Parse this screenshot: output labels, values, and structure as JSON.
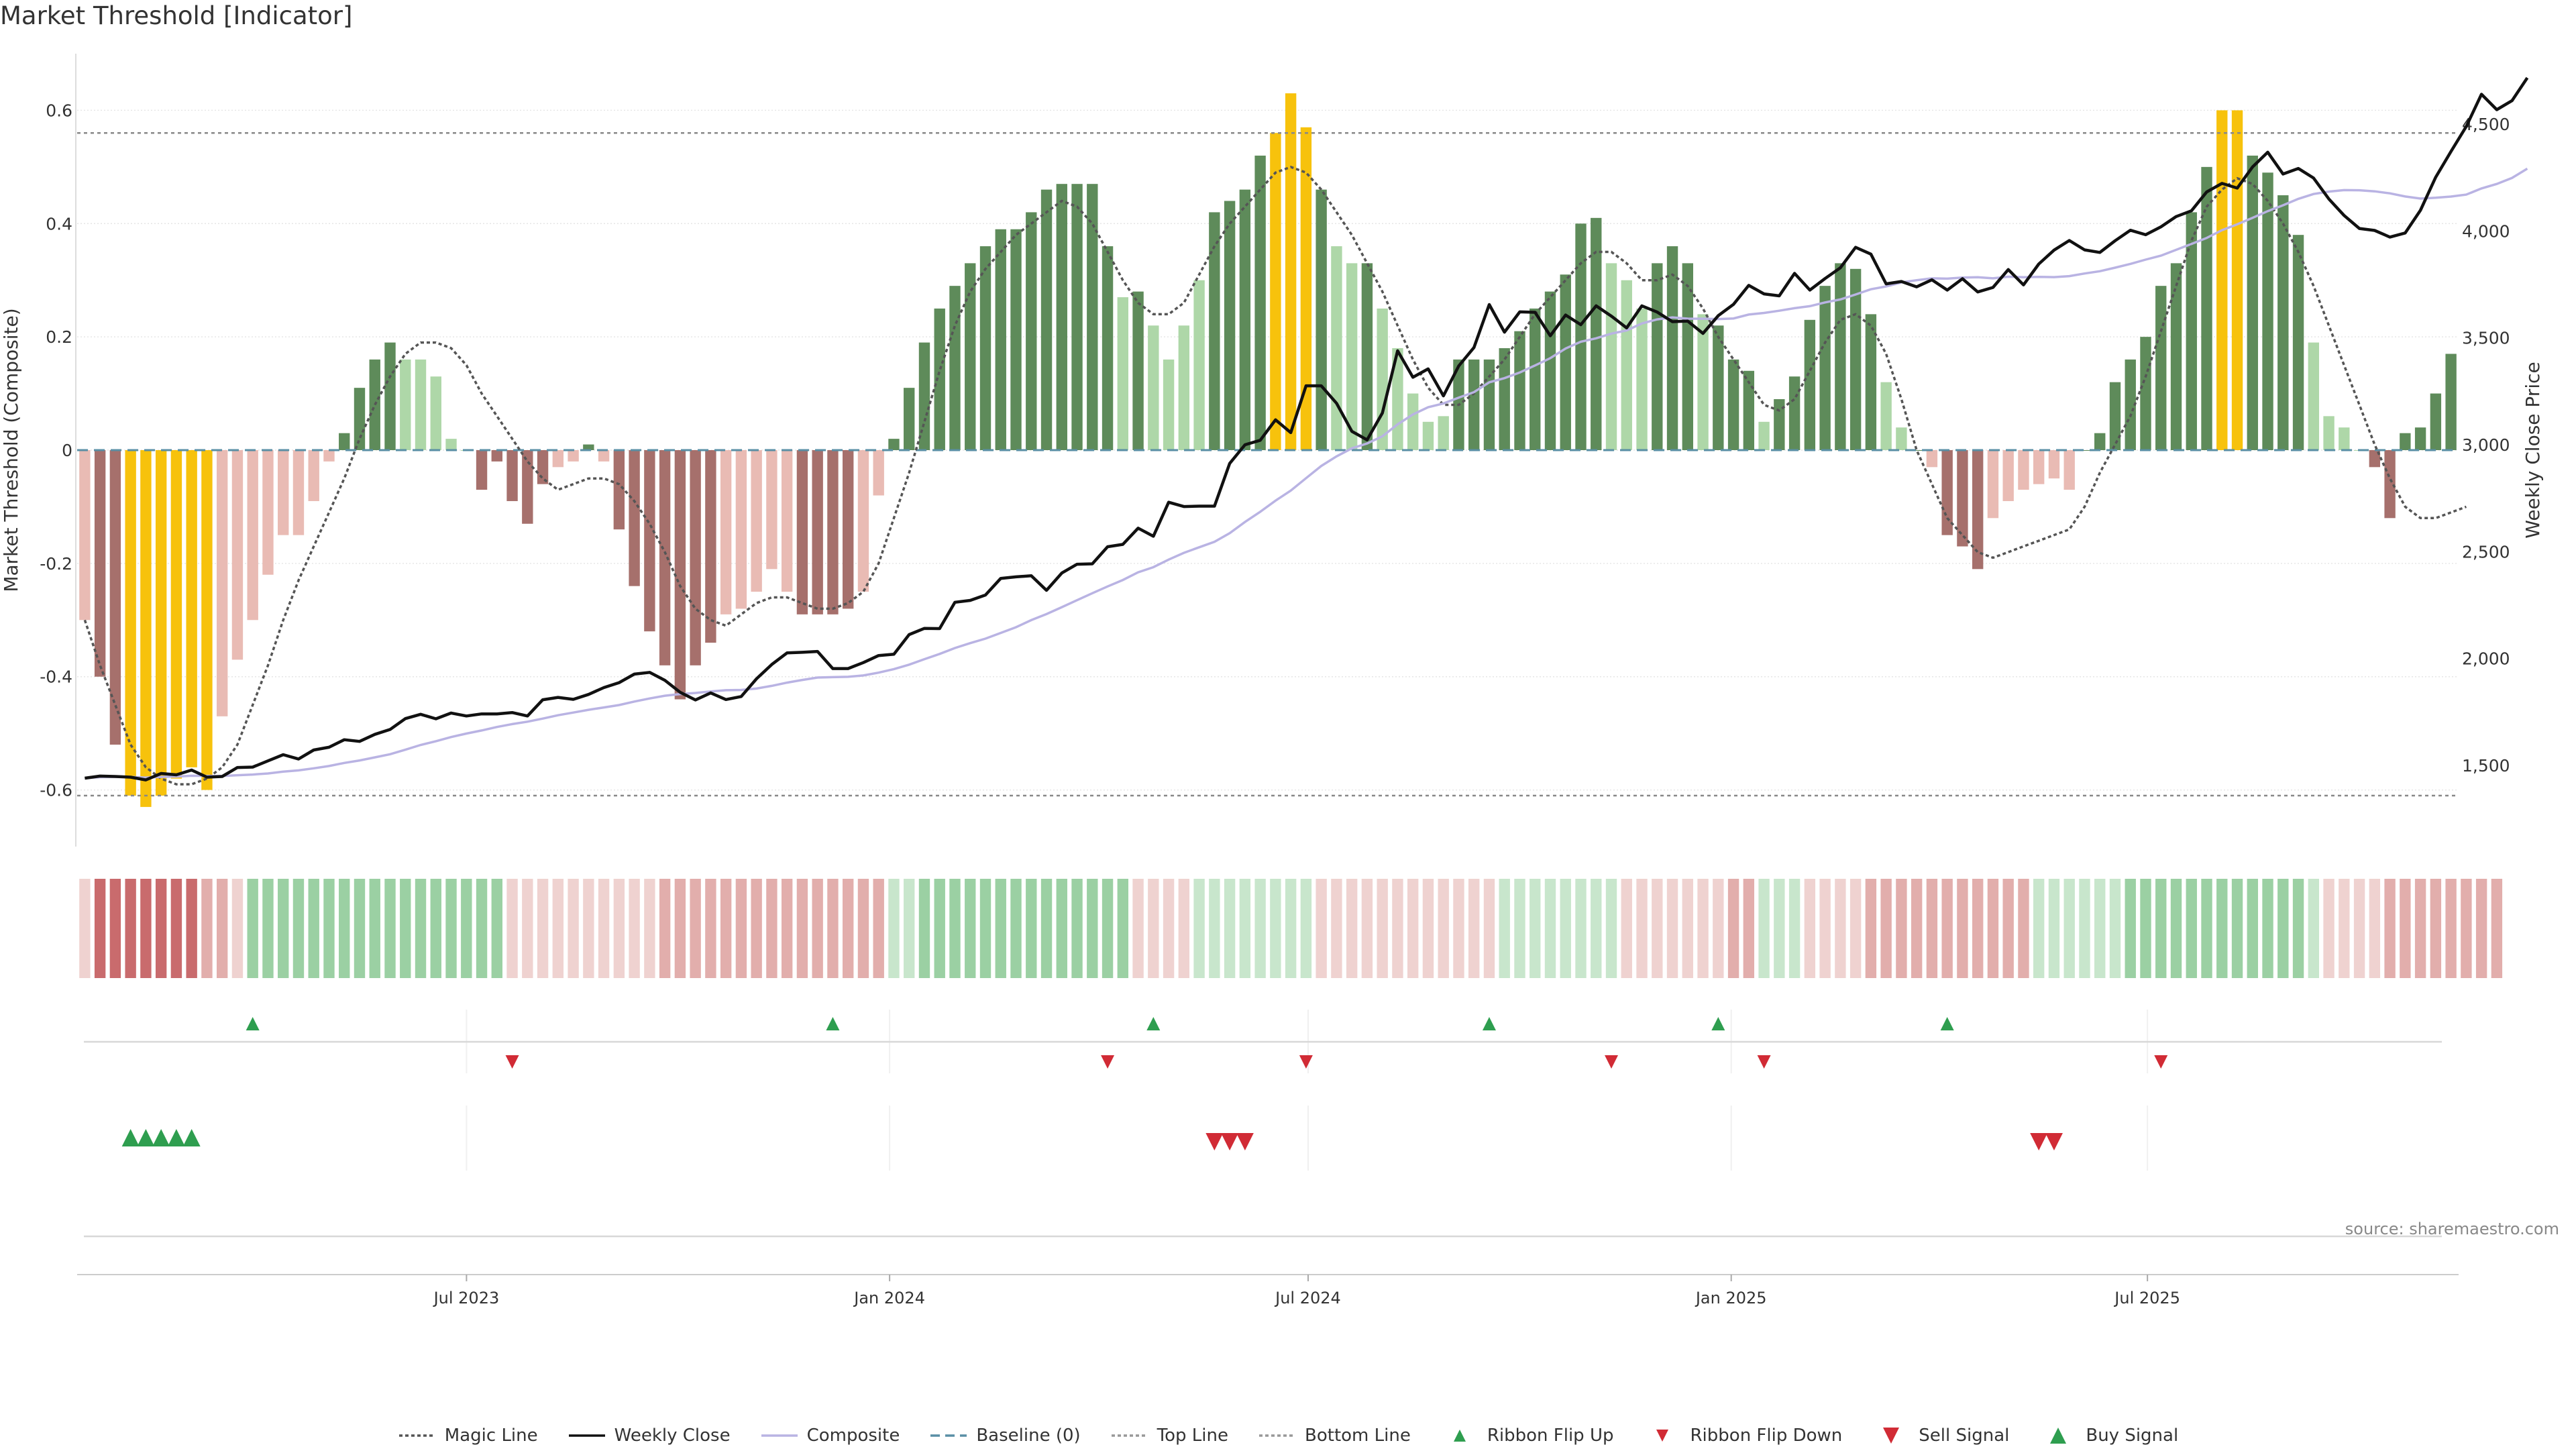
{
  "chart_data": {
    "type": "bar",
    "title": "Market Threshold [Indicator]",
    "ylabel": "Market Threshold (Composite)",
    "ylabel_right": "Weekly Close Price",
    "ylim": [
      -0.7,
      0.7
    ],
    "ylim_right": [
      1120,
      4830
    ],
    "yticks": [
      -0.6,
      -0.4,
      -0.2,
      0,
      0.2,
      0.4,
      0.6
    ],
    "yticks_right": [
      1500,
      2000,
      2500,
      3000,
      3500,
      4000,
      4500
    ],
    "date_start": "2023-01-16",
    "date_end": "2025-11-10",
    "xticks": [
      {
        "date": "2023-07-01",
        "label": "Jul 2023"
      },
      {
        "date": "2024-01-01",
        "label": "Jan 2024"
      },
      {
        "date": "2024-07-01",
        "label": "Jul 2024"
      },
      {
        "date": "2025-01-01",
        "label": "Jan 2025"
      },
      {
        "date": "2025-07-01",
        "label": "Jul 2025"
      }
    ],
    "top_line": 0.56,
    "bottom_line": -0.61,
    "baseline": 0,
    "composite": [
      -0.3,
      -0.4,
      -0.52,
      -0.61,
      -0.63,
      -0.61,
      -0.58,
      -0.56,
      -0.6,
      -0.47,
      -0.37,
      -0.3,
      -0.22,
      -0.15,
      -0.15,
      -0.09,
      -0.02,
      0.03,
      0.11,
      0.16,
      0.19,
      0.16,
      0.16,
      0.13,
      0.02,
      0,
      -0.07,
      -0.02,
      -0.09,
      -0.13,
      -0.06,
      -0.03,
      -0.02,
      0.01,
      -0.02,
      -0.14,
      -0.24,
      -0.32,
      -0.38,
      -0.44,
      -0.38,
      -0.34,
      -0.29,
      -0.28,
      -0.25,
      -0.21,
      -0.25,
      -0.29,
      -0.29,
      -0.29,
      -0.28,
      -0.25,
      -0.08,
      0.02,
      0.11,
      0.19,
      0.25,
      0.29,
      0.33,
      0.36,
      0.39,
      0.39,
      0.42,
      0.46,
      0.47,
      0.47,
      0.47,
      0.36,
      0.27,
      0.28,
      0.22,
      0.16,
      0.22,
      0.3,
      0.42,
      0.44,
      0.46,
      0.52,
      0.56,
      0.63,
      0.57,
      0.46,
      0.36,
      0.33,
      0.33,
      0.25,
      0.18,
      0.1,
      0.05,
      0.06,
      0.16,
      0.16,
      0.16,
      0.18,
      0.21,
      0.25,
      0.28,
      0.31,
      0.4,
      0.41,
      0.33,
      0.3,
      0.25,
      0.33,
      0.36,
      0.33,
      0.24,
      0.22,
      0.16,
      0.14,
      0.05,
      0.09,
      0.13,
      0.23,
      0.29,
      0.33,
      0.32,
      0.24,
      0.12,
      0.04,
      0,
      -0.03,
      -0.15,
      -0.17,
      -0.21,
      -0.12,
      -0.09,
      -0.07,
      -0.06,
      -0.05,
      -0.07,
      0,
      0.03,
      0.12,
      0.16,
      0.2,
      0.29,
      0.33,
      0.42,
      0.5,
      0.6,
      0.6,
      0.52,
      0.49,
      0.45,
      0.38,
      0.19,
      0.06,
      0.04,
      0,
      -0.03,
      -0.12,
      0.03,
      0.04,
      0.1,
      0.17
    ],
    "weekly_close": [
      1440,
      1450,
      1448,
      1445,
      1432,
      1462,
      1456,
      1478,
      1445,
      1448,
      1490,
      1492,
      1521,
      1550,
      1530,
      1572,
      1585,
      1620,
      1612,
      1645,
      1668,
      1719,
      1739,
      1718,
      1745,
      1731,
      1741,
      1741,
      1747,
      1731,
      1807,
      1818,
      1809,
      1832,
      1864,
      1887,
      1927,
      1935,
      1898,
      1842,
      1806,
      1839,
      1808,
      1822,
      1905,
      1972,
      2026,
      2029,
      2033,
      1953,
      1953,
      1981,
      2014,
      2020,
      2112,
      2141,
      2140,
      2263,
      2272,
      2297,
      2375,
      2382,
      2387,
      2319,
      2400,
      2441,
      2443,
      2523,
      2534,
      2610,
      2572,
      2731,
      2711,
      2713,
      2713,
      2913,
      3000,
      3021,
      3117,
      3057,
      3276,
      3276,
      3194,
      3063,
      3023,
      3149,
      3440,
      3316,
      3355,
      3229,
      3369,
      3455,
      3656,
      3527,
      3622,
      3620,
      3510,
      3607,
      3562,
      3650,
      3602,
      3547,
      3650,
      3621,
      3576,
      3579,
      3521,
      3604,
      3657,
      3746,
      3706,
      3697,
      3802,
      3724,
      3778,
      3828,
      3924,
      3892,
      3753,
      3764,
      3739,
      3772,
      3724,
      3777,
      3715,
      3736,
      3820,
      3748,
      3846,
      3911,
      3956,
      3912,
      3900,
      3955,
      4004,
      3983,
      4020,
      4068,
      4095,
      4183,
      4223,
      4201,
      4300,
      4369,
      4267,
      4293,
      4248,
      4150,
      4073,
      4012,
      4003,
      3972,
      3991,
      4097,
      4252,
      4372,
      4489,
      4640,
      4568,
      4610,
      4717
    ],
    "magic_line": [
      -0.3,
      -0.38,
      -0.45,
      -0.52,
      -0.56,
      -0.58,
      -0.59,
      -0.59,
      -0.58,
      -0.56,
      -0.52,
      -0.45,
      -0.38,
      -0.3,
      -0.23,
      -0.17,
      -0.11,
      -0.05,
      0.02,
      0.08,
      0.13,
      0.17,
      0.19,
      0.19,
      0.18,
      0.15,
      0.1,
      0.06,
      0.02,
      -0.02,
      -0.05,
      -0.07,
      -0.06,
      -0.05,
      -0.05,
      -0.06,
      -0.09,
      -0.13,
      -0.18,
      -0.24,
      -0.28,
      -0.3,
      -0.31,
      -0.29,
      -0.27,
      -0.26,
      -0.26,
      -0.27,
      -0.28,
      -0.28,
      -0.27,
      -0.25,
      -0.2,
      -0.12,
      -0.04,
      0.05,
      0.14,
      0.22,
      0.28,
      0.32,
      0.35,
      0.38,
      0.4,
      0.42,
      0.44,
      0.43,
      0.4,
      0.35,
      0.3,
      0.26,
      0.24,
      0.24,
      0.26,
      0.31,
      0.36,
      0.4,
      0.43,
      0.46,
      0.49,
      0.5,
      0.49,
      0.46,
      0.42,
      0.38,
      0.33,
      0.28,
      0.22,
      0.16,
      0.11,
      0.08,
      0.08,
      0.1,
      0.13,
      0.16,
      0.2,
      0.24,
      0.27,
      0.3,
      0.33,
      0.35,
      0.35,
      0.33,
      0.3,
      0.3,
      0.31,
      0.29,
      0.25,
      0.2,
      0.16,
      0.12,
      0.08,
      0.07,
      0.09,
      0.14,
      0.19,
      0.23,
      0.24,
      0.22,
      0.17,
      0.09,
      0,
      -0.06,
      -0.12,
      -0.15,
      -0.18,
      -0.19,
      -0.18,
      -0.17,
      -0.16,
      -0.15,
      -0.14,
      -0.1,
      -0.04,
      0.01,
      0.06,
      0.13,
      0.21,
      0.29,
      0.37,
      0.43,
      0.46,
      0.48,
      0.47,
      0.44,
      0.4,
      0.35,
      0.29,
      0.22,
      0.15,
      0.08,
      0.01,
      -0.05,
      -0.1,
      -0.12,
      -0.12,
      -0.11,
      -0.1
    ],
    "ribbon_colors": [
      "light-red",
      "red",
      "red",
      "red",
      "red",
      "red",
      "red",
      "red",
      "medium-red",
      "medium-red",
      "light-red",
      "green",
      "green",
      "green",
      "green",
      "green",
      "green",
      "green",
      "green",
      "green",
      "green",
      "green",
      "green",
      "green",
      "green",
      "green",
      "green",
      "green",
      "light-red",
      "light-red",
      "light-red",
      "light-red",
      "light-red",
      "light-red",
      "light-red",
      "light-red",
      "light-red",
      "light-red",
      "medium-red",
      "medium-red",
      "medium-red",
      "medium-red",
      "medium-red",
      "medium-red",
      "medium-red",
      "medium-red",
      "medium-red",
      "medium-red",
      "medium-red",
      "medium-red",
      "medium-red",
      "medium-red",
      "medium-red",
      "light-green",
      "light-green",
      "green",
      "green",
      "green",
      "green",
      "green",
      "green",
      "green",
      "green",
      "green",
      "green",
      "green",
      "green",
      "green",
      "green",
      "light-red",
      "light-red",
      "light-red",
      "light-red",
      "light-green",
      "light-green",
      "light-green",
      "light-green",
      "light-green",
      "light-green",
      "light-green",
      "light-green",
      "light-red",
      "light-red",
      "light-red",
      "light-red",
      "light-red",
      "light-red",
      "light-red",
      "light-red",
      "light-red",
      "light-red",
      "light-red",
      "light-red",
      "light-green",
      "light-green",
      "light-green",
      "light-green",
      "light-green",
      "light-green",
      "light-green",
      "light-green",
      "light-red",
      "light-red",
      "light-red",
      "light-red",
      "light-red",
      "light-red",
      "light-red",
      "medium-red",
      "medium-red",
      "light-green",
      "light-green",
      "light-green",
      "light-red",
      "light-red",
      "light-red",
      "light-red",
      "medium-red",
      "medium-red",
      "medium-red",
      "medium-red",
      "medium-red",
      "medium-red",
      "medium-red",
      "medium-red",
      "medium-red",
      "medium-red",
      "medium-red",
      "light-green",
      "light-green",
      "light-green",
      "light-green",
      "light-green",
      "light-green",
      "green",
      "green",
      "green",
      "green",
      "green",
      "green",
      "green",
      "green",
      "green",
      "green",
      "green",
      "green",
      "light-green",
      "light-red",
      "light-red",
      "light-red",
      "light-red",
      "medium-red",
      "medium-red",
      "medium-red",
      "medium-red",
      "medium-red",
      "medium-red",
      "medium-red",
      "medium-red"
    ],
    "ribbon_flip_up": [
      11,
      49,
      70,
      92,
      107,
      122
    ],
    "ribbon_flip_down": [
      28,
      67,
      80,
      100,
      110,
      136
    ],
    "buy_signal": [
      3,
      4,
      5,
      6,
      7
    ],
    "sell_signal": [
      74,
      75,
      76,
      128,
      129
    ],
    "source": "source: sharemaestro.com",
    "legend": [
      {
        "label": "Magic Line",
        "kind": "dotted-line",
        "color": "#555555"
      },
      {
        "label": "Weekly Close",
        "kind": "line",
        "color": "#111111"
      },
      {
        "label": "Composite",
        "kind": "line",
        "color": "#b9b3e3"
      },
      {
        "label": "Baseline (0)",
        "kind": "dashed-line",
        "color": "#5a8fa5"
      },
      {
        "label": "Top Line",
        "kind": "dotted-line",
        "color": "#999999"
      },
      {
        "label": "Bottom Line",
        "kind": "dotted-line",
        "color": "#999999"
      },
      {
        "label": "Ribbon Flip Up",
        "kind": "triangle-up",
        "color": "#2e9e4f"
      },
      {
        "label": "Ribbon Flip Down",
        "kind": "triangle-down",
        "color": "#d12b35"
      },
      {
        "label": "Sell Signal",
        "kind": "triangle-down-large",
        "color": "#d12b35"
      },
      {
        "label": "Buy Signal",
        "kind": "triangle-up-large",
        "color": "#2e9e4f"
      }
    ],
    "colors": {
      "extreme": "#f7c20c",
      "strong_positive": "#5e8b5a",
      "weak_positive": "#aed7a8",
      "strong_negative": "#a6706c",
      "weak_negative": "#e9bbb4",
      "ribbon_green": "#9bd0a3",
      "ribbon_light_green": "#c8e6cc",
      "ribbon_red": "#c96b6d",
      "ribbon_medium_red": "#e2aeac",
      "ribbon_light_red": "#efd2d0"
    }
  }
}
